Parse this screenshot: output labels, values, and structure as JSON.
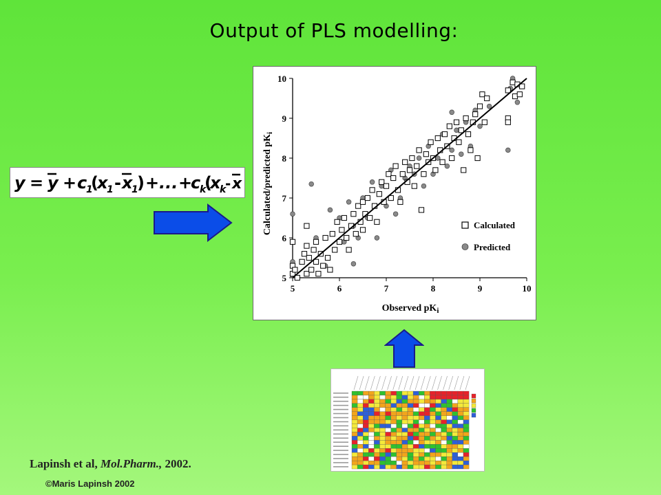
{
  "title": "Output of PLS modelling:",
  "equation": {
    "y": "y",
    "eq": "=",
    "ybar": "y",
    "plus": "+",
    "c1": "c",
    "s1": "1",
    "x1": "x",
    "xs1": "1",
    "minus": "-",
    "xbar1": "x",
    "ellipsis": "...",
    "ck": "c",
    "sk": "k",
    "xk": "x",
    "xsk": "k",
    "xbark": "x"
  },
  "citation": {
    "authors": "Lapinsh et al,",
    "journal": "Mol.Pharm.,",
    "year": "2002."
  },
  "copyright": "©Maris Lapinsh 2002",
  "colors": {
    "arrow": "#0b4de8",
    "regression_line": "#000000",
    "predicted_fill": "#8a8a8a"
  },
  "icons": {
    "right_arrow": "arrow-right-icon",
    "up_arrow": "arrow-up-icon"
  },
  "chart_data": {
    "type": "scatter",
    "xlabel": "Observed pK",
    "xlabel_sub": "i",
    "ylabel": "Calculated/predicted pK",
    "ylabel_sub": "i",
    "xlim": [
      5,
      10
    ],
    "ylim": [
      5,
      10
    ],
    "xticks": [
      "5",
      "6",
      "7",
      "8",
      "9",
      "10"
    ],
    "yticks": [
      "5",
      "6",
      "7",
      "8",
      "9",
      "10"
    ],
    "regression_line": [
      [
        5.0,
        5.0
      ],
      [
        10.0,
        10.0
      ]
    ],
    "legend_position": "bottom-right",
    "series": [
      {
        "name": "Calculated",
        "marker": "open-square",
        "points": [
          [
            5.0,
            5.3
          ],
          [
            5.0,
            5.1
          ],
          [
            5.0,
            5.9
          ],
          [
            5.05,
            5.2
          ],
          [
            5.1,
            5.0
          ],
          [
            5.2,
            5.4
          ],
          [
            5.25,
            5.6
          ],
          [
            5.3,
            5.1
          ],
          [
            5.3,
            5.8
          ],
          [
            5.3,
            6.3
          ],
          [
            5.35,
            5.5
          ],
          [
            5.4,
            5.2
          ],
          [
            5.45,
            5.7
          ],
          [
            5.5,
            5.4
          ],
          [
            5.5,
            5.9
          ],
          [
            5.55,
            5.1
          ],
          [
            5.6,
            5.6
          ],
          [
            5.65,
            5.3
          ],
          [
            5.7,
            6.0
          ],
          [
            5.75,
            5.5
          ],
          [
            5.8,
            5.2
          ],
          [
            5.85,
            6.1
          ],
          [
            5.9,
            5.7
          ],
          [
            5.95,
            6.4
          ],
          [
            6.0,
            5.9
          ],
          [
            6.05,
            6.2
          ],
          [
            6.1,
            6.5
          ],
          [
            6.15,
            6.0
          ],
          [
            6.2,
            5.7
          ],
          [
            6.25,
            6.3
          ],
          [
            6.3,
            6.6
          ],
          [
            6.35,
            6.1
          ],
          [
            6.4,
            6.8
          ],
          [
            6.45,
            6.4
          ],
          [
            6.5,
            6.9
          ],
          [
            6.5,
            6.2
          ],
          [
            6.55,
            6.6
          ],
          [
            6.6,
            7.0
          ],
          [
            6.65,
            6.5
          ],
          [
            6.7,
            7.2
          ],
          [
            6.75,
            6.8
          ],
          [
            6.8,
            6.4
          ],
          [
            6.85,
            7.1
          ],
          [
            6.9,
            7.4
          ],
          [
            6.95,
            6.9
          ],
          [
            7.0,
            7.3
          ],
          [
            7.05,
            7.6
          ],
          [
            7.1,
            7.0
          ],
          [
            7.15,
            7.5
          ],
          [
            7.2,
            7.8
          ],
          [
            7.25,
            7.2
          ],
          [
            7.3,
            6.9
          ],
          [
            7.35,
            7.6
          ],
          [
            7.4,
            7.9
          ],
          [
            7.45,
            7.4
          ],
          [
            7.5,
            7.7
          ],
          [
            7.55,
            8.0
          ],
          [
            7.6,
            7.3
          ],
          [
            7.65,
            7.8
          ],
          [
            7.7,
            8.2
          ],
          [
            7.75,
            6.7
          ],
          [
            7.8,
            7.6
          ],
          [
            7.85,
            8.1
          ],
          [
            7.9,
            7.9
          ],
          [
            7.95,
            8.4
          ],
          [
            8.0,
            8.0
          ],
          [
            8.05,
            7.7
          ],
          [
            8.1,
            8.5
          ],
          [
            8.15,
            8.2
          ],
          [
            8.2,
            7.9
          ],
          [
            8.25,
            8.6
          ],
          [
            8.3,
            8.3
          ],
          [
            8.35,
            8.8
          ],
          [
            8.4,
            8.0
          ],
          [
            8.45,
            8.5
          ],
          [
            8.5,
            8.9
          ],
          [
            8.55,
            8.4
          ],
          [
            8.6,
            8.7
          ],
          [
            8.65,
            7.7
          ],
          [
            8.7,
            9.0
          ],
          [
            8.75,
            8.6
          ],
          [
            8.8,
            8.2
          ],
          [
            8.85,
            8.9
          ],
          [
            8.9,
            9.1
          ],
          [
            8.95,
            8.0
          ],
          [
            9.0,
            9.3
          ],
          [
            9.05,
            9.6
          ],
          [
            9.1,
            8.9
          ],
          [
            9.15,
            9.5
          ],
          [
            9.6,
            9.0
          ],
          [
            9.6,
            8.9
          ],
          [
            9.6,
            9.7
          ],
          [
            9.7,
            9.9
          ],
          [
            9.75,
            9.55
          ],
          [
            9.8,
            9.85
          ],
          [
            9.85,
            9.6
          ],
          [
            9.9,
            9.8
          ]
        ]
      },
      {
        "name": "Predicted",
        "marker": "filled-circle",
        "points": [
          [
            5.0,
            5.05
          ],
          [
            5.0,
            6.6
          ],
          [
            5.0,
            5.4
          ],
          [
            5.4,
            7.35
          ],
          [
            5.3,
            5.8
          ],
          [
            5.5,
            6.0
          ],
          [
            5.7,
            5.3
          ],
          [
            5.8,
            6.7
          ],
          [
            6.0,
            6.5
          ],
          [
            6.1,
            5.9
          ],
          [
            6.2,
            6.9
          ],
          [
            6.3,
            6.3
          ],
          [
            6.3,
            5.35
          ],
          [
            6.4,
            6.0
          ],
          [
            6.5,
            7.0
          ],
          [
            6.6,
            6.5
          ],
          [
            6.7,
            7.4
          ],
          [
            6.8,
            6.0
          ],
          [
            6.9,
            7.3
          ],
          [
            7.0,
            6.8
          ],
          [
            7.1,
            7.7
          ],
          [
            7.2,
            6.6
          ],
          [
            7.3,
            7.0
          ],
          [
            7.4,
            7.5
          ],
          [
            7.5,
            7.8
          ],
          [
            7.6,
            7.6
          ],
          [
            7.7,
            8.0
          ],
          [
            7.8,
            7.3
          ],
          [
            7.9,
            8.3
          ],
          [
            8.0,
            7.6
          ],
          [
            8.1,
            8.0
          ],
          [
            8.2,
            8.6
          ],
          [
            8.3,
            7.8
          ],
          [
            8.4,
            8.2
          ],
          [
            8.4,
            9.15
          ],
          [
            8.5,
            8.7
          ],
          [
            8.6,
            8.1
          ],
          [
            8.7,
            8.9
          ],
          [
            8.8,
            8.3
          ],
          [
            8.9,
            9.2
          ],
          [
            9.0,
            8.8
          ],
          [
            9.2,
            9.3
          ],
          [
            9.6,
            8.2
          ],
          [
            9.65,
            9.75
          ],
          [
            9.7,
            10.0
          ],
          [
            9.8,
            9.4
          ],
          [
            9.9,
            9.8
          ]
        ]
      }
    ]
  }
}
